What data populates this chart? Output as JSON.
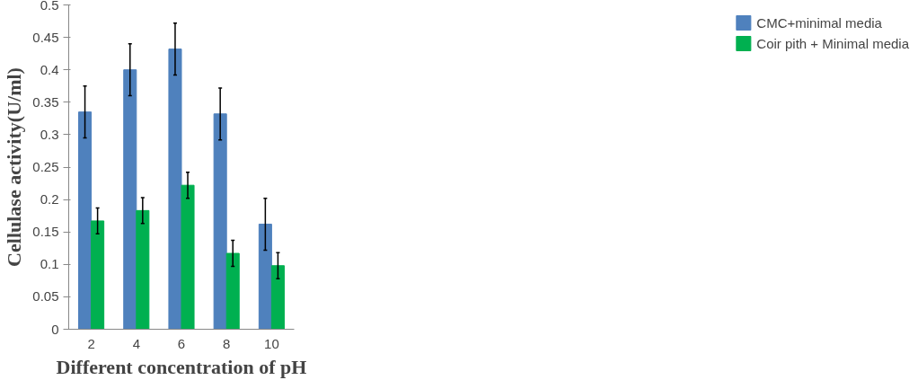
{
  "chart_data": {
    "type": "bar",
    "xlabel": "Different concentration of pH",
    "ylabel": "Cellulase activity(U/ml)",
    "categories": [
      "2",
      "4",
      "6",
      "8",
      "10"
    ],
    "series": [
      {
        "name": "CMC+minimal media",
        "color": "#4f81bd",
        "values": [
          0.335,
          0.4,
          0.432,
          0.332,
          0.162
        ],
        "errors": [
          0.04,
          0.04,
          0.04,
          0.04,
          0.04
        ]
      },
      {
        "name": "Coir pith + Minimal media",
        "color": "#00b050",
        "values": [
          0.167,
          0.183,
          0.222,
          0.117,
          0.098
        ],
        "errors": [
          0.02,
          0.02,
          0.02,
          0.02,
          0.02
        ]
      }
    ],
    "ylim": [
      0,
      0.5
    ],
    "yticks": [
      0,
      {
        "value": 0.05,
        "label": "0.05"
      },
      {
        "value": 0.1,
        "label": "0.1"
      },
      {
        "value": 0.15,
        "label": "0.15"
      },
      {
        "value": 0.2,
        "label": "0.2"
      },
      {
        "value": 0.25,
        "label": "0.25"
      },
      {
        "value": 0.3,
        "label": "0.3"
      },
      {
        "value": 0.35,
        "label": "0.35"
      },
      {
        "value": 0.4,
        "label": "0.4"
      },
      {
        "value": 0.45,
        "label": "0.45"
      },
      {
        "value": 0.5,
        "label": "0.5"
      }
    ],
    "grid": false,
    "legend": "right"
  }
}
